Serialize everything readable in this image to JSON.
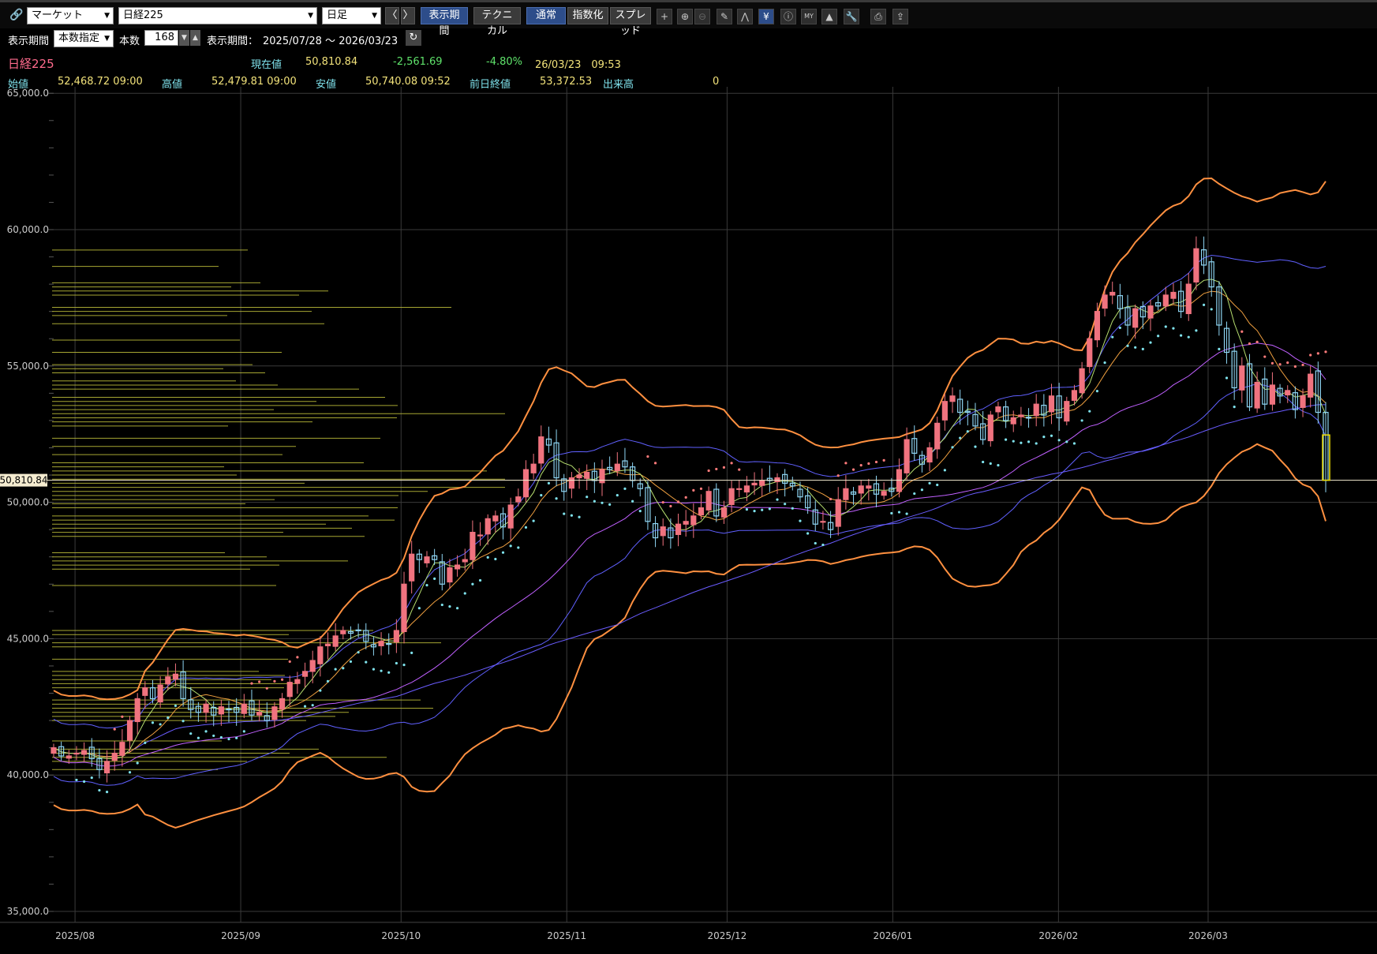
{
  "toolbar": {
    "link_icon": "link-icon",
    "market_select": "マーケット",
    "symbol_select": "日経225",
    "period_type_select": "日足",
    "prev_label": "〈",
    "next_label": "〉",
    "display_period_button": "表示期間",
    "technical_button": "テクニカル",
    "normal_button": "通常",
    "index_button": "指数化",
    "spread_button": "スプレッド",
    "icons": [
      "crosshair-icon",
      "zoom-in-icon",
      "zoom-out-icon",
      "pen-icon",
      "trend-icon",
      "yen-icon",
      "info-icon",
      "my-icon",
      "area-icon",
      "wrench-icon",
      "print-icon",
      "export-icon"
    ]
  },
  "period_row": {
    "period_label": "表示期間",
    "period_mode": "本数指定",
    "count_label": "本数",
    "count_value": "168",
    "range_label": "表示期間：",
    "range_value": "2025/07/28 ～ 2026/03/23"
  },
  "quote": {
    "name": "日経225",
    "current_label": "現在値",
    "current_value": "50,810.84",
    "change": "-2,561.69",
    "change_pct": "-4.80%",
    "datetime": "26/03/23　09:53",
    "open_label": "始値",
    "open_value": "52,468.72 09:00",
    "high_label": "高値",
    "high_value": "52,479.81 09:00",
    "low_label": "安値",
    "low_value": "50,740.08 09:52",
    "prev_close_label": "前日終値",
    "prev_close_value": "53,372.53",
    "volume_label": "出来高",
    "volume_value": "0"
  },
  "colors": {
    "up": "#f0737f",
    "down": "#8fd6f4",
    "bb_outer": "#ff9040",
    "bb_mid": "#6060ff",
    "ma": "#c060ff",
    "sar_up": "#7fe2ec",
    "sar_down": "#ff7b7b",
    "volume_profile": "#b8b838"
  },
  "chart_data": {
    "type": "candlestick",
    "ylim": [
      35000,
      65000
    ],
    "y_ticks": [
      "35,000.0",
      "40,000.0",
      "45,000.0",
      "50,000.0",
      "55,000.0",
      "60,000.0",
      "65,000.0"
    ],
    "x_labels": [
      "2025/08",
      "2025/09",
      "2025/10",
      "2025/11",
      "2025/12",
      "2026/01",
      "2026/02",
      "2026/03"
    ],
    "x_label_dates": [
      "2025-08-01",
      "2025-09-01",
      "2025-10-01",
      "2025-11-01",
      "2025-12-01",
      "2026-01-01",
      "2026-02-01",
      "2026-03-01"
    ],
    "start_date": "2025-07-28",
    "end_date": "2026-03-23",
    "current_price_label": "50,810.84",
    "current_price": 50810.84,
    "closes": [
      41000,
      40700,
      40700,
      40800,
      40900,
      40600,
      40200,
      40500,
      40800,
      41200,
      42000,
      42800,
      43200,
      42800,
      43300,
      43600,
      43700,
      42800,
      42400,
      42300,
      42600,
      42200,
      42500,
      42400,
      42300,
      42600,
      42200,
      42300,
      42000,
      42500,
      42800,
      43400,
      43500,
      43800,
      44200,
      44700,
      44800,
      45100,
      45300,
      45200,
      45300,
      44900,
      44700,
      44900,
      44800,
      45300,
      47000,
      48100,
      47900,
      48000,
      47900,
      47000,
      47600,
      47700,
      47900,
      48900,
      48800,
      49400,
      49500,
      49100,
      49900,
      50200,
      51200,
      51400,
      52400,
      52100,
      50900,
      50400,
      50900,
      51000,
      51100,
      50800,
      51200,
      51200,
      51400,
      51300,
      50800,
      50500,
      49300,
      48700,
      49100,
      48700,
      49200,
      49300,
      49500,
      49800,
      50400,
      49500,
      49800,
      50500,
      50500,
      50600,
      50700,
      50800,
      50800,
      50900,
      50700,
      50600,
      50200,
      49800,
      49200,
      49300,
      49000,
      50100,
      50500,
      50300,
      50600,
      50600,
      50300,
      50400,
      50400,
      51200,
      52300,
      51800,
      51400,
      52000,
      52900,
      53700,
      53900,
      53300,
      53300,
      52800,
      52300,
      53200,
      53500,
      53000,
      53100,
      53200,
      53100,
      53600,
      53200,
      53900,
      53100,
      53700,
      54100,
      54900,
      56000,
      57000,
      57600,
      57700,
      57100,
      56500,
      57100,
      56800,
      57200,
      57200,
      57600,
      57700,
      57000,
      58000,
      59300,
      58700,
      57900,
      56500,
      55500,
      54200,
      55000,
      53500,
      54400,
      53600,
      54300,
      53900,
      54100,
      53400,
      53900,
      54700,
      53300,
      50810
    ],
    "price_overlays": "moving averages, Bollinger bands, parabolic SAR, volume-by-price profile"
  }
}
